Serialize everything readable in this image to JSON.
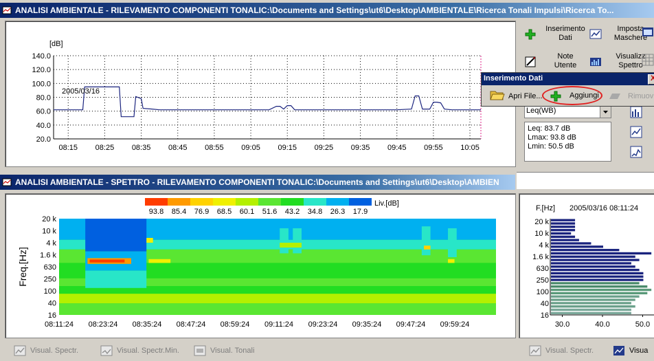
{
  "top_window": {
    "title": "ANALISI AMBIENTALE - RILEVAMENTO COMPONENTI TONALIC:\\Documents and Settings\\ut6\\Desktop\\AMBIENTALE\\Ricerca Tonali Impulsi\\Ricerca To..."
  },
  "bottom_window": {
    "title": "ANALISI AMBIENTALE  - SPETTRO - RILEVAMENTO COMPONENTI TONALIC:\\Documents and Settings\\ut6\\Desktop\\AMBIEN"
  },
  "toolbar": {
    "inserimento_dati": "Inserimento\nDati",
    "imposta_maschere": "Imposta\nMaschere",
    "note_utente": "Note\nUtente",
    "visualizza_spettro": "Visualizz\nSpettro"
  },
  "popup": {
    "title": "Inserimento Dati",
    "apri_file": "Apri File...",
    "aggiungi": "Aggiungi",
    "rimuovi": "Rimuovi",
    "close": "X"
  },
  "leq_select": {
    "value": "Leq(WB)"
  },
  "stats": {
    "leq": "Leq: 83.7 dB",
    "lmax": "Lmax: 93.8 dB",
    "lmin": "Lmin: 50.5 dB"
  },
  "bottom_buttons": {
    "visual_spectr": "Visual. Spectr.",
    "visual_spectr_min": "Visual. Spectr.Min.",
    "visual_tonali": "Visual. Tonali",
    "visual_spectr_right": "Visual. Spectr.",
    "visual_right": "Visua"
  },
  "colors": {
    "trace": "#1a237e",
    "grid": "#000000",
    "cursor": "#e0208a",
    "title_bar": "#0a246a"
  },
  "chart_data": [
    {
      "type": "line",
      "ylabel": "[dB]",
      "ylim": [
        20,
        140
      ],
      "yticks": [
        "140.0",
        "120.0",
        "100.0",
        "80.0",
        "60.0",
        "40.0",
        "20.0"
      ],
      "xticks": [
        "08:15",
        "08:25",
        "08:35",
        "08:45",
        "08:55",
        "09:05",
        "09:15",
        "09:25",
        "09:35",
        "09:45",
        "09:55",
        "10:05"
      ],
      "annotation": "2005/03/16",
      "x": [
        "08:11",
        "08:19",
        "08:19.5",
        "08:29",
        "08:29.5",
        "08:33",
        "08:33.5",
        "08:35",
        "08:35.5",
        "08:38",
        "08:40",
        "08:50",
        "09:00",
        "09:10",
        "09:12",
        "09:13",
        "09:14",
        "09:15",
        "09:16",
        "09:17",
        "09:30",
        "09:45",
        "09:49",
        "09:50",
        "09:51",
        "09:52",
        "09:54",
        "09:55",
        "09:56",
        "09:57",
        "09:58",
        "10:00",
        "10:05",
        "10:08"
      ],
      "y": [
        62,
        62,
        95,
        95,
        52,
        52,
        81,
        78,
        64,
        63,
        62,
        62,
        62,
        62,
        67,
        67,
        63,
        68,
        68,
        62,
        62,
        62,
        63,
        82,
        82,
        63,
        63,
        73,
        73,
        72,
        63,
        62,
        62,
        62
      ]
    },
    {
      "type": "heatmap",
      "ylabel": "Freq.[Hz]",
      "yticks": [
        "20 k",
        "10 k",
        "4 k",
        "1.6 k",
        "630",
        "250",
        "100",
        "40",
        "16"
      ],
      "xticks": [
        "08:11:24",
        "08:23:24",
        "08:35:24",
        "08:47:24",
        "08:59:24",
        "09:11:24",
        "09:23:24",
        "09:35:24",
        "09:47:24",
        "09:59:24"
      ],
      "legend_title": "Liv.[dB]",
      "legend_values": [
        "93.8",
        "85.4",
        "76.9",
        "68.5",
        "60.1",
        "51.6",
        "43.2",
        "34.8",
        "26.3",
        "17.9"
      ],
      "legend_colors": [
        "#ff3c00",
        "#ff9a00",
        "#ffd200",
        "#f0f000",
        "#b4f000",
        "#5ae632",
        "#22dd22",
        "#28e6c8",
        "#00b0f0",
        "#0060e0"
      ]
    },
    {
      "type": "bar",
      "title": "2005/03/16 08:11:24",
      "ylabel": "F.[Hz]",
      "yticks": [
        "20 k",
        "10 k",
        "4 k",
        "1.6 k",
        "630",
        "250",
        "100",
        "40",
        "16"
      ],
      "xticks": [
        "30.0",
        "40.0",
        "50.0"
      ],
      "xlim": [
        27,
        53
      ],
      "values": [
        33,
        33,
        33,
        33,
        32,
        33,
        34,
        37,
        40,
        44,
        52,
        48,
        49,
        47,
        48,
        49,
        50,
        50,
        50,
        49,
        51,
        52,
        51,
        49,
        48,
        47,
        48,
        47,
        47
      ],
      "bar_colors": [
        "#1a237e",
        "#1a237e",
        "#1a237e",
        "#1a237e",
        "#1a237e",
        "#1a237e",
        "#1a237e",
        "#1a237e",
        "#1a237e",
        "#1a237e",
        "#1a237e",
        "#1a237e",
        "#1a237e",
        "#1a237e",
        "#1a237e",
        "#1a237e",
        "#1a237e",
        "#1a237e",
        "#1a237e",
        "#4a8a6a",
        "#4a8a6a",
        "#5a9a7a",
        "#5a9a7a",
        "#6aa08a",
        "#6aa08a",
        "#6aa08a",
        "#6aa08a",
        "#7aa89a",
        "#7aa89a"
      ]
    }
  ]
}
